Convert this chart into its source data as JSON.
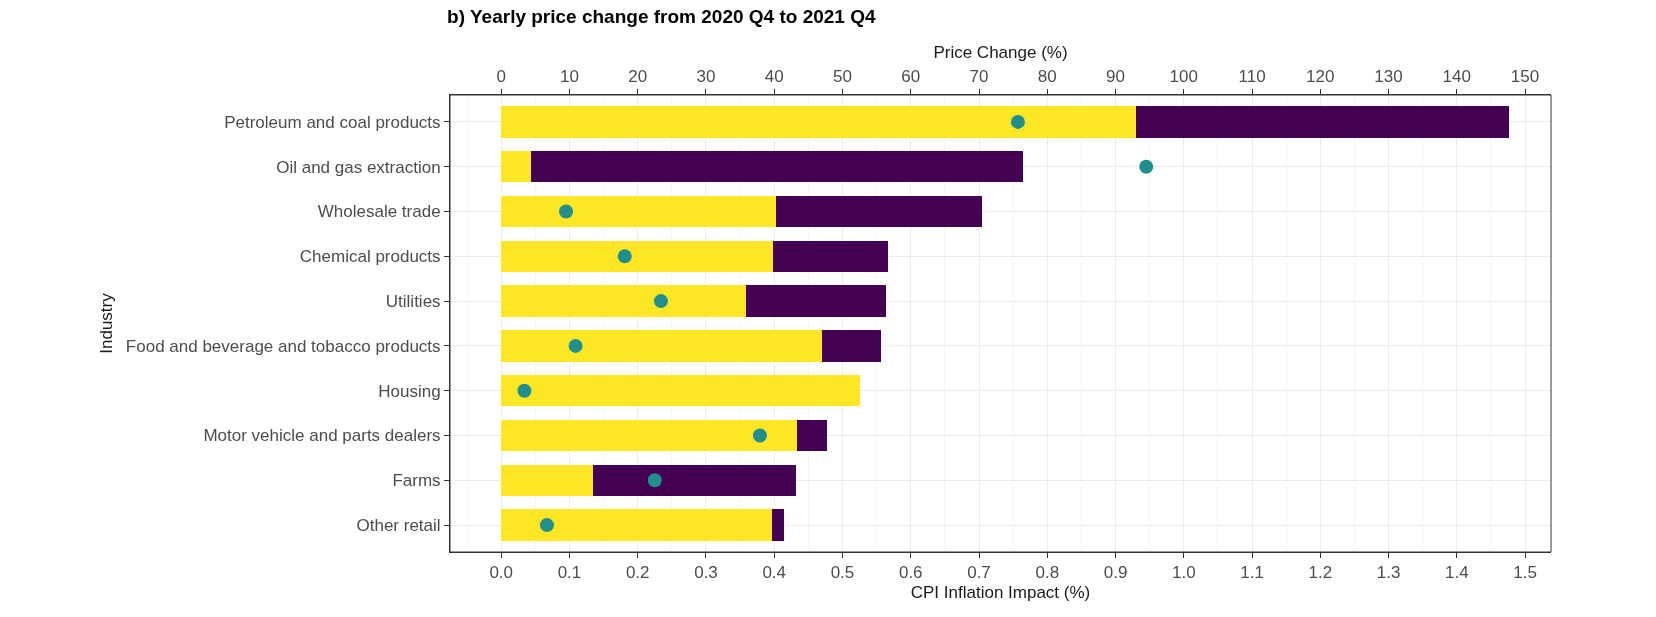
{
  "chart_data": {
    "type": "bar",
    "title": "b) Yearly price change from 2020 Q4 to 2021 Q4",
    "xlabel": "CPI Inflation Impact (%)",
    "x2label": "Price Change (%)",
    "ylabel": "Industry",
    "orientation": "horizontal",
    "stacked": true,
    "grid": true,
    "categories": [
      "Petroleum and coal products",
      "Oil and gas extraction",
      "Wholesale trade",
      "Chemical products",
      "Utilities",
      "Food and beverage and tobacco products",
      "Housing",
      "Motor vehicle and parts dealers",
      "Farms",
      "Other retail"
    ],
    "series": [
      {
        "color": "#fde725",
        "values": [
          0.93,
          0.043,
          0.402,
          0.398,
          0.358,
          0.47,
          0.526,
          0.433,
          0.134,
          0.397
        ]
      },
      {
        "color": "#440154",
        "values": [
          0.547,
          0.722,
          0.302,
          0.169,
          0.206,
          0.086,
          0.0,
          0.044,
          0.298,
          0.018
        ]
      },
      {
        "type": "scatter",
        "axis": "x2",
        "marker": "circle",
        "color": "#21908c",
        "values": [
          75.7,
          94.5,
          9.5,
          18.1,
          23.4,
          10.9,
          3.4,
          37.9,
          22.5,
          6.7
        ]
      }
    ],
    "xlim": [
      -0.075,
      1.538
    ],
    "xticks": [
      {
        "value": 0,
        "label": "0.0"
      },
      0.1,
      0.2,
      0.3,
      0.4,
      0.5,
      0.6,
      0.7,
      0.8,
      0.9,
      {
        "value": 1,
        "label": "1.0"
      },
      1.1,
      1.2,
      1.3,
      1.4,
      1.5
    ],
    "x2lim": [
      -7.5,
      153.8
    ],
    "x2ticks": [
      0,
      10,
      20,
      30,
      40,
      50,
      60,
      70,
      80,
      90,
      100,
      110,
      120,
      130,
      140,
      150
    ]
  }
}
